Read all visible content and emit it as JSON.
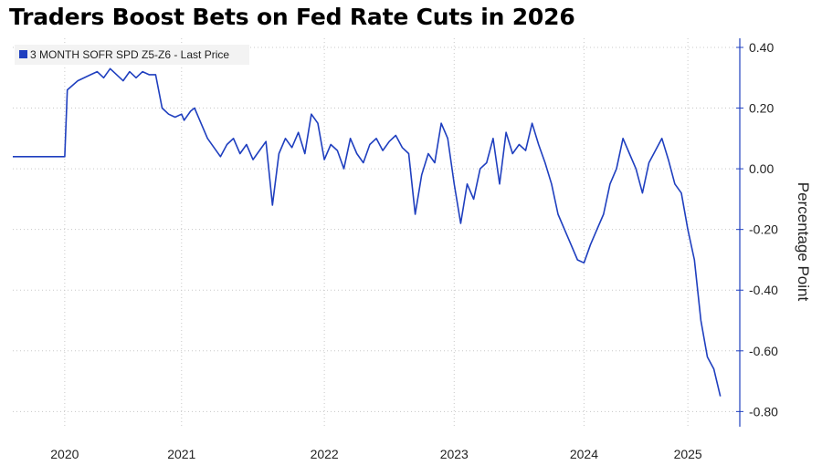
{
  "chart_data": {
    "type": "line",
    "title": "Traders Boost Bets on Fed Rate Cuts in 2026",
    "ylabel": "Percentage Point",
    "xlabel": "",
    "ylim": [
      -0.85,
      0.43
    ],
    "xlim": [
      2019.9,
      2025.5
    ],
    "y_ticks": [
      0.4,
      0.2,
      0.0,
      -0.2,
      -0.4,
      -0.6,
      -0.8
    ],
    "y_tick_labels": [
      "0.40",
      "0.20",
      "0.00",
      "-0.20",
      "-0.40",
      "-0.60",
      "-0.80"
    ],
    "x_ticks": [
      2020.3,
      2021.2,
      2022.3,
      2023.3,
      2024.3,
      2025.1
    ],
    "x_tick_labels": [
      "2020",
      "2021",
      "2022",
      "2023",
      "2024",
      "2025"
    ],
    "grid": true,
    "legend_position": "top-left",
    "series": [
      {
        "name": "3 MONTH SOFR SPD Z5-Z6 - Last Price",
        "color": "#1f3fbf",
        "x": [
          2019.9,
          2020.3,
          2020.32,
          2020.4,
          2020.5,
          2020.55,
          2020.6,
          2020.65,
          2020.7,
          2020.75,
          2020.8,
          2020.85,
          2020.9,
          2020.95,
          2021.0,
          2021.05,
          2021.1,
          2021.15,
          2021.2,
          2021.22,
          2021.27,
          2021.3,
          2021.35,
          2021.4,
          2021.45,
          2021.5,
          2021.55,
          2021.6,
          2021.65,
          2021.7,
          2021.75,
          2021.8,
          2021.85,
          2021.9,
          2021.95,
          2022.0,
          2022.05,
          2022.1,
          2022.15,
          2022.2,
          2022.25,
          2022.3,
          2022.35,
          2022.4,
          2022.45,
          2022.5,
          2022.55,
          2022.6,
          2022.65,
          2022.7,
          2022.75,
          2022.8,
          2022.85,
          2022.9,
          2022.95,
          2023.0,
          2023.05,
          2023.1,
          2023.15,
          2023.2,
          2023.25,
          2023.3,
          2023.35,
          2023.4,
          2023.45,
          2023.5,
          2023.55,
          2023.6,
          2023.65,
          2023.7,
          2023.75,
          2023.8,
          2023.85,
          2023.9,
          2023.95,
          2024.0,
          2024.05,
          2024.1,
          2024.15,
          2024.2,
          2024.25,
          2024.3,
          2024.35,
          2024.4,
          2024.45,
          2024.5,
          2024.55,
          2024.6,
          2024.65,
          2024.7,
          2024.75,
          2024.8,
          2024.85,
          2024.9,
          2024.95,
          2025.0,
          2025.05,
          2025.1,
          2025.15,
          2025.2,
          2025.25,
          2025.3,
          2025.35
        ],
        "values": [
          0.04,
          0.04,
          0.26,
          0.29,
          0.31,
          0.32,
          0.3,
          0.33,
          0.31,
          0.29,
          0.32,
          0.3,
          0.32,
          0.31,
          0.31,
          0.2,
          0.18,
          0.17,
          0.18,
          0.16,
          0.19,
          0.2,
          0.15,
          0.1,
          0.07,
          0.04,
          0.08,
          0.1,
          0.05,
          0.08,
          0.03,
          0.06,
          0.09,
          -0.12,
          0.05,
          0.1,
          0.07,
          0.12,
          0.05,
          0.18,
          0.15,
          0.03,
          0.08,
          0.06,
          0.0,
          0.1,
          0.05,
          0.02,
          0.08,
          0.1,
          0.06,
          0.09,
          0.11,
          0.07,
          0.05,
          -0.15,
          -0.02,
          0.05,
          0.02,
          0.15,
          0.1,
          -0.05,
          -0.18,
          -0.05,
          -0.1,
          0.0,
          0.02,
          0.1,
          -0.05,
          0.12,
          0.05,
          0.08,
          0.06,
          0.15,
          0.08,
          0.02,
          -0.05,
          -0.15,
          -0.2,
          -0.25,
          -0.3,
          -0.31,
          -0.25,
          -0.2,
          -0.15,
          -0.05,
          0.0,
          0.1,
          0.05,
          0.0,
          -0.08,
          0.02,
          0.06,
          0.1,
          0.03,
          -0.05,
          -0.08,
          -0.2,
          -0.3,
          -0.5,
          -0.62,
          -0.66,
          -0.75
        ]
      }
    ]
  }
}
